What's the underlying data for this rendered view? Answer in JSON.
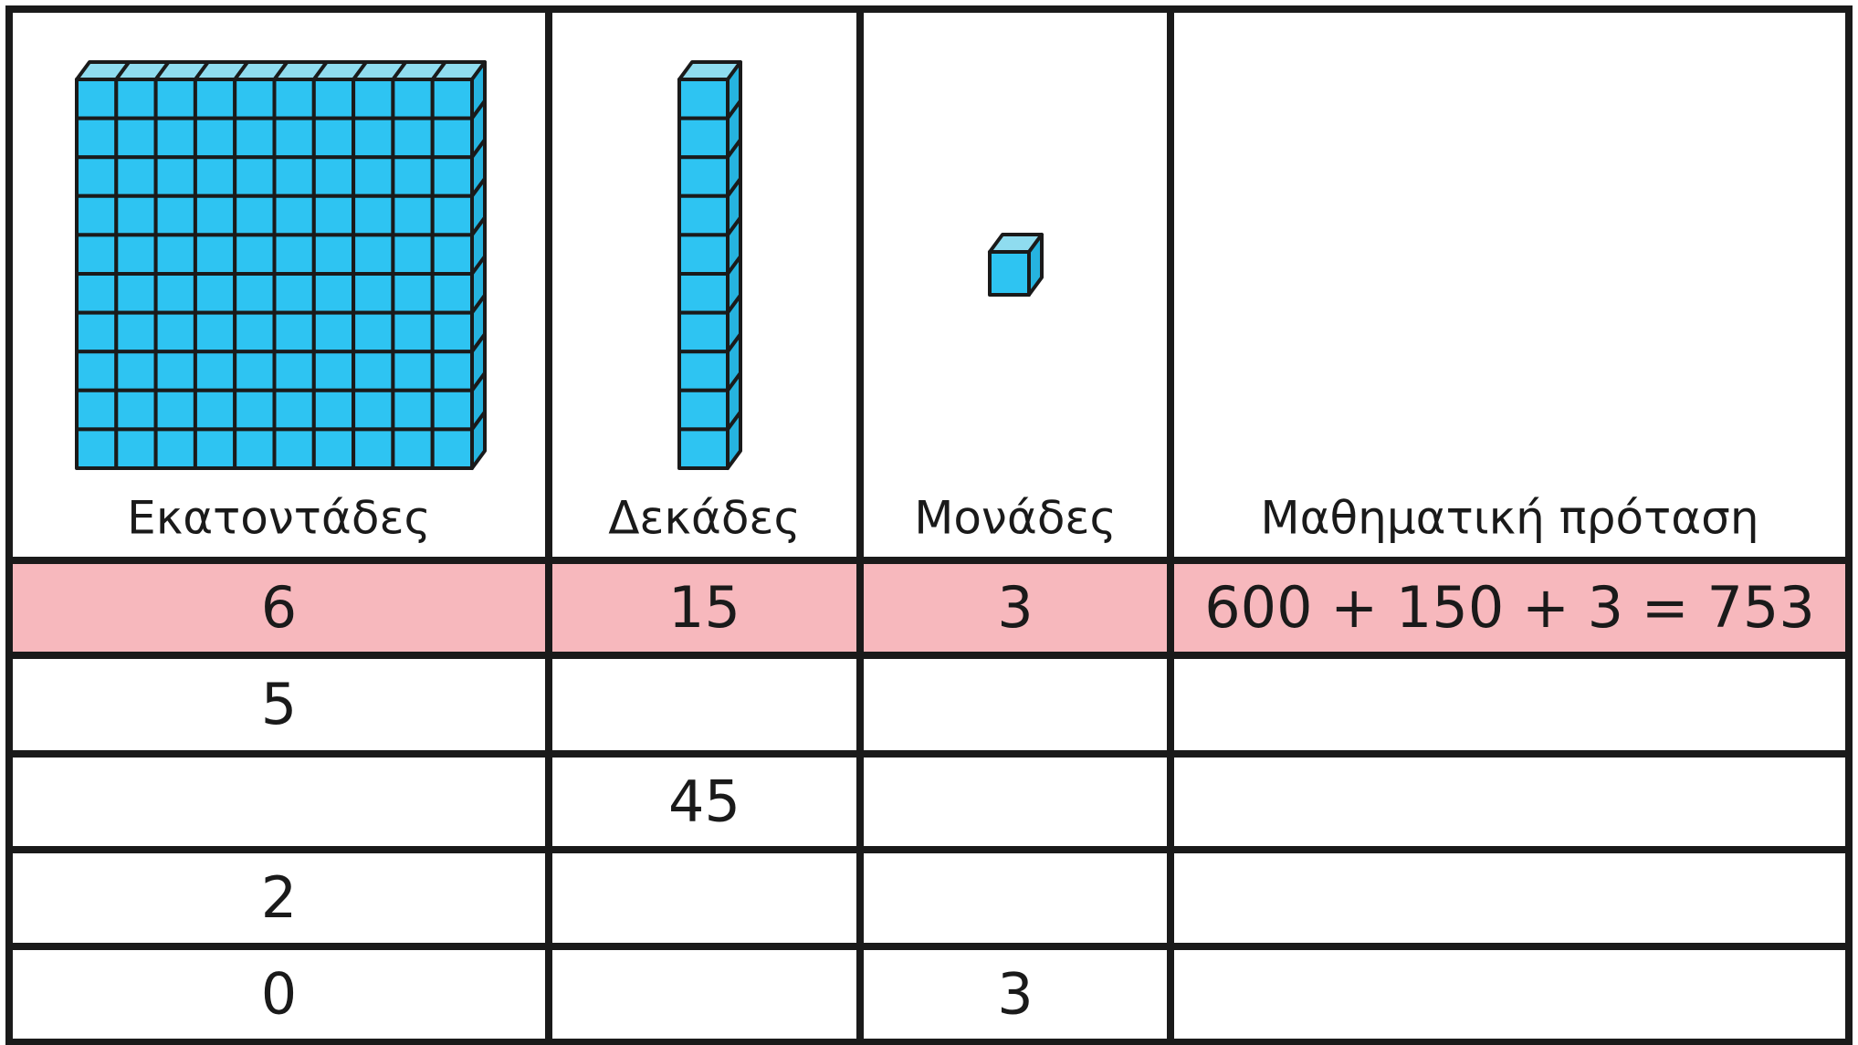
{
  "table": {
    "headers": [
      "Εκατοντάδες",
      "Δεκάδες",
      "Μονάδες",
      "Μαθηματική πρόταση"
    ],
    "rows": [
      [
        "6",
        "15",
        "3",
        "600 + 150 + 3 = 753"
      ],
      [
        "5",
        null,
        null,
        null
      ],
      [
        null,
        "45",
        null,
        null
      ],
      [
        "2",
        null,
        null,
        null
      ],
      [
        "0",
        null,
        "3",
        null
      ]
    ]
  }
}
